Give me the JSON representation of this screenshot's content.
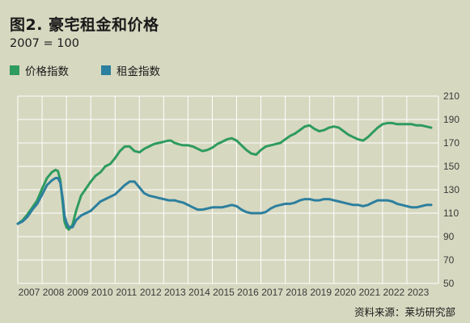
{
  "title": "图2. 豪宅租金和价格",
  "subtitle": "2007 = 100",
  "source": "资料来源：莱坊研究部",
  "legend": [
    {
      "name": "价格指数",
      "color": "#2e9b5f"
    },
    {
      "name": "租金指数",
      "color": "#2c7f9e"
    }
  ],
  "chart_data": {
    "type": "line",
    "xlim": [
      2007,
      2024.3
    ],
    "ylim": [
      50,
      210
    ],
    "yticks": [
      50,
      70,
      90,
      110,
      130,
      150,
      170,
      190,
      210
    ],
    "xticks": [
      2007,
      2008,
      2009,
      2010,
      2011,
      2012,
      2013,
      2014,
      2015,
      2016,
      2017,
      2018,
      2019,
      2020,
      2021,
      2022,
      2023
    ],
    "grid": true,
    "series": [
      {
        "name": "价格指数",
        "color": "#2e9b5f",
        "x": [
          2007.0,
          2007.2,
          2007.4,
          2007.6,
          2007.8,
          2008.0,
          2008.2,
          2008.4,
          2008.55,
          2008.65,
          2008.75,
          2008.85,
          2008.92,
          2009.0,
          2009.1,
          2009.25,
          2009.4,
          2009.6,
          2009.8,
          2010.0,
          2010.2,
          2010.4,
          2010.6,
          2010.8,
          2011.0,
          2011.2,
          2011.4,
          2011.6,
          2011.8,
          2012.0,
          2012.2,
          2012.4,
          2012.6,
          2012.8,
          2013.0,
          2013.2,
          2013.3,
          2013.45,
          2013.6,
          2013.8,
          2014.0,
          2014.2,
          2014.4,
          2014.6,
          2014.8,
          2015.0,
          2015.2,
          2015.4,
          2015.6,
          2015.8,
          2016.0,
          2016.2,
          2016.4,
          2016.6,
          2016.8,
          2017.0,
          2017.2,
          2017.4,
          2017.6,
          2017.8,
          2018.0,
          2018.2,
          2018.4,
          2018.6,
          2018.8,
          2019.0,
          2019.2,
          2019.4,
          2019.6,
          2019.8,
          2020.0,
          2020.2,
          2020.4,
          2020.6,
          2020.8,
          2021.0,
          2021.2,
          2021.4,
          2021.6,
          2021.8,
          2022.0,
          2022.2,
          2022.4,
          2022.6,
          2022.8,
          2023.0,
          2023.2,
          2023.4,
          2023.6,
          2023.8,
          2024.0
        ],
        "values": [
          101,
          104,
          109,
          115,
          121,
          131,
          140,
          145,
          147,
          146,
          138,
          118,
          103,
          98,
          96,
          100,
          112,
          125,
          131,
          137,
          142,
          145,
          150,
          152,
          157,
          163,
          167,
          167,
          163,
          162,
          165,
          167,
          169,
          170,
          171,
          172,
          172,
          170,
          169,
          168,
          168,
          167,
          165,
          163,
          164,
          166,
          169,
          171,
          173,
          174,
          172,
          168,
          164,
          161,
          160,
          164,
          167,
          168,
          169,
          170,
          173,
          176,
          178,
          181,
          184,
          185,
          182,
          180,
          181,
          183,
          184,
          183,
          180,
          177,
          175,
          173,
          172,
          175,
          179,
          183,
          186,
          187,
          187,
          186,
          186,
          186,
          186,
          185,
          185,
          184,
          183
        ]
      },
      {
        "name": "租金指数",
        "color": "#2c7f9e",
        "x": [
          2007.0,
          2007.2,
          2007.4,
          2007.6,
          2007.8,
          2008.0,
          2008.2,
          2008.4,
          2008.55,
          2008.65,
          2008.75,
          2008.85,
          2008.92,
          2009.0,
          2009.1,
          2009.25,
          2009.4,
          2009.6,
          2009.8,
          2010.0,
          2010.2,
          2010.4,
          2010.6,
          2010.8,
          2011.0,
          2011.2,
          2011.4,
          2011.6,
          2011.8,
          2012.0,
          2012.2,
          2012.4,
          2012.6,
          2012.8,
          2013.0,
          2013.2,
          2013.3,
          2013.45,
          2013.6,
          2013.8,
          2014.0,
          2014.2,
          2014.4,
          2014.6,
          2014.8,
          2015.0,
          2015.2,
          2015.4,
          2015.6,
          2015.8,
          2016.0,
          2016.2,
          2016.4,
          2016.6,
          2016.8,
          2017.0,
          2017.2,
          2017.4,
          2017.6,
          2017.8,
          2018.0,
          2018.2,
          2018.4,
          2018.6,
          2018.8,
          2019.0,
          2019.2,
          2019.4,
          2019.6,
          2019.8,
          2020.0,
          2020.2,
          2020.4,
          2020.6,
          2020.8,
          2021.0,
          2021.2,
          2021.4,
          2021.6,
          2021.8,
          2022.0,
          2022.2,
          2022.4,
          2022.6,
          2022.8,
          2023.0,
          2023.2,
          2023.4,
          2023.6,
          2023.8,
          2024.0
        ],
        "values": [
          101,
          103,
          107,
          113,
          118,
          126,
          134,
          138,
          140,
          140,
          136,
          122,
          108,
          102,
          98,
          98,
          104,
          108,
          110,
          112,
          116,
          120,
          122,
          124,
          126,
          130,
          134,
          137,
          137,
          132,
          127,
          125,
          124,
          123,
          122,
          121,
          121,
          121,
          120,
          119,
          117,
          115,
          113,
          113,
          114,
          115,
          115,
          115,
          116,
          117,
          116,
          113,
          111,
          110,
          110,
          110,
          111,
          114,
          116,
          117,
          118,
          118,
          119,
          121,
          122,
          122,
          121,
          121,
          122,
          122,
          121,
          120,
          119,
          118,
          117,
          117,
          116,
          117,
          119,
          121,
          121,
          121,
          120,
          118,
          117,
          116,
          115,
          115,
          116,
          117,
          117
        ]
      }
    ]
  }
}
